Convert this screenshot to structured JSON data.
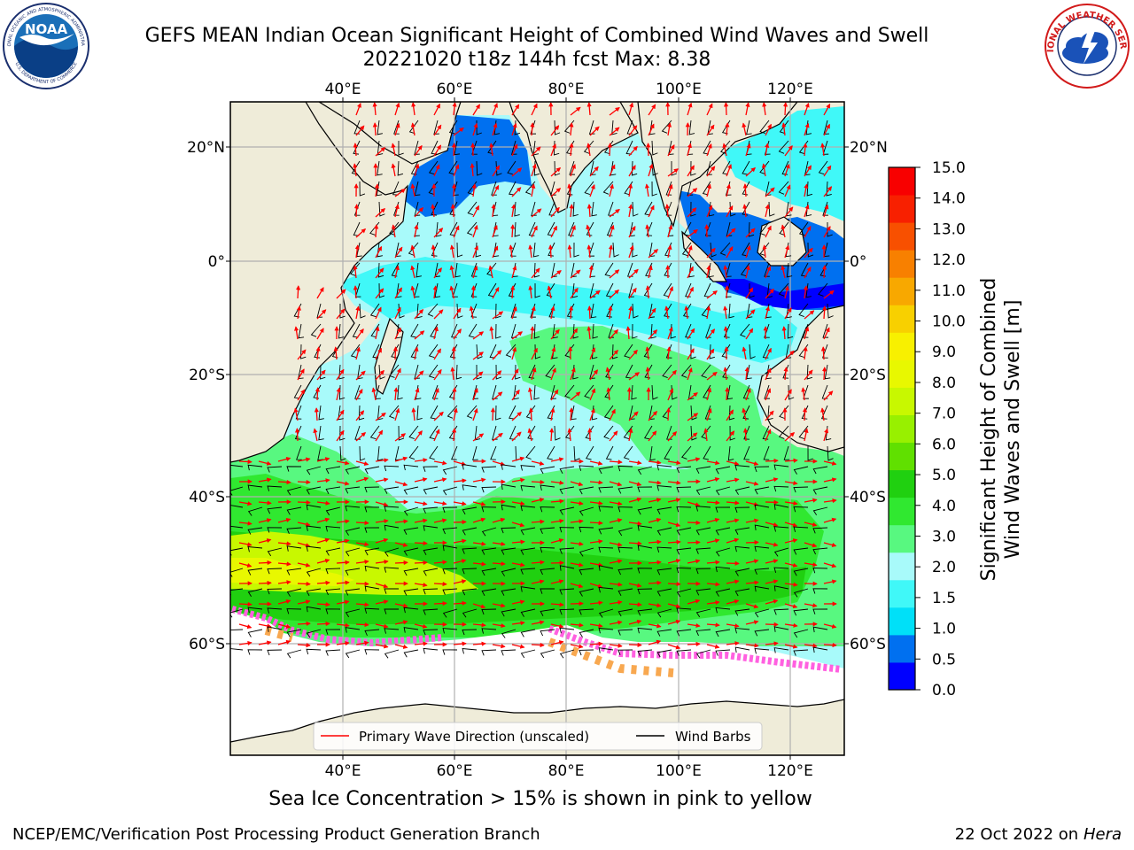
{
  "header": {
    "title_line1": "GEFS MEAN Indian Ocean Significant Height of Combined Wind Waves and Swell",
    "title_line2": "20221020 t18z 144h fcst   Max: 8.38"
  },
  "logos": {
    "noaa_text": "NOAA",
    "noaa_ring_top": "NATIONAL OCEANIC AND ATMOSPHERIC ADMINISTRATION",
    "noaa_ring_bottom": "U.S. DEPARTMENT OF COMMERCE",
    "nws_ring": "NATIONAL WEATHER SERVICE"
  },
  "map": {
    "lon_ticks_top": [
      "40°E",
      "60°E",
      "80°E",
      "100°E",
      "120°E"
    ],
    "lon_ticks_bottom": [
      "40°E",
      "60°E",
      "80°E",
      "100°E",
      "120°E"
    ],
    "lat_ticks_left": [
      "20°N",
      "0°",
      "20°S",
      "40°S",
      "60°S"
    ],
    "lat_ticks_right": [
      "20°N",
      "0°",
      "20°S",
      "40°S",
      "60°S"
    ],
    "legend": {
      "primary_wave": "Primary Wave Direction (unscaled)",
      "wind_barbs": "Wind Barbs"
    }
  },
  "colorbar": {
    "label_line1": "Significant Height of Combined",
    "label_line2": "Wind Waves and Swell [m]",
    "ticks": [
      "15.0",
      "14.0",
      "13.0",
      "12.0",
      "11.0",
      "10.0",
      "9.0",
      "8.0",
      "7.0",
      "6.0",
      "5.0",
      "4.0",
      "3.0",
      "2.0",
      "1.5",
      "1.0",
      "0.5",
      "0.0"
    ],
    "colors": [
      "#0000ff",
      "#0070f0",
      "#00e0f8",
      "#40f8f8",
      "#a8fafa",
      "#58f880",
      "#30e830",
      "#20d010",
      "#60e000",
      "#98f000",
      "#c8f800",
      "#e8f800",
      "#f8f000",
      "#f8d000",
      "#f8a800",
      "#f88000",
      "#f85000",
      "#f82000",
      "#f80000"
    ]
  },
  "caption": "Sea Ice Concentration > 15% is shown in pink to yellow",
  "footer": {
    "left": "NCEP/EMC/Verification Post Processing Product Generation Branch",
    "right_prefix": "22 Oct 2022 on ",
    "right_italic": "Hera"
  }
}
